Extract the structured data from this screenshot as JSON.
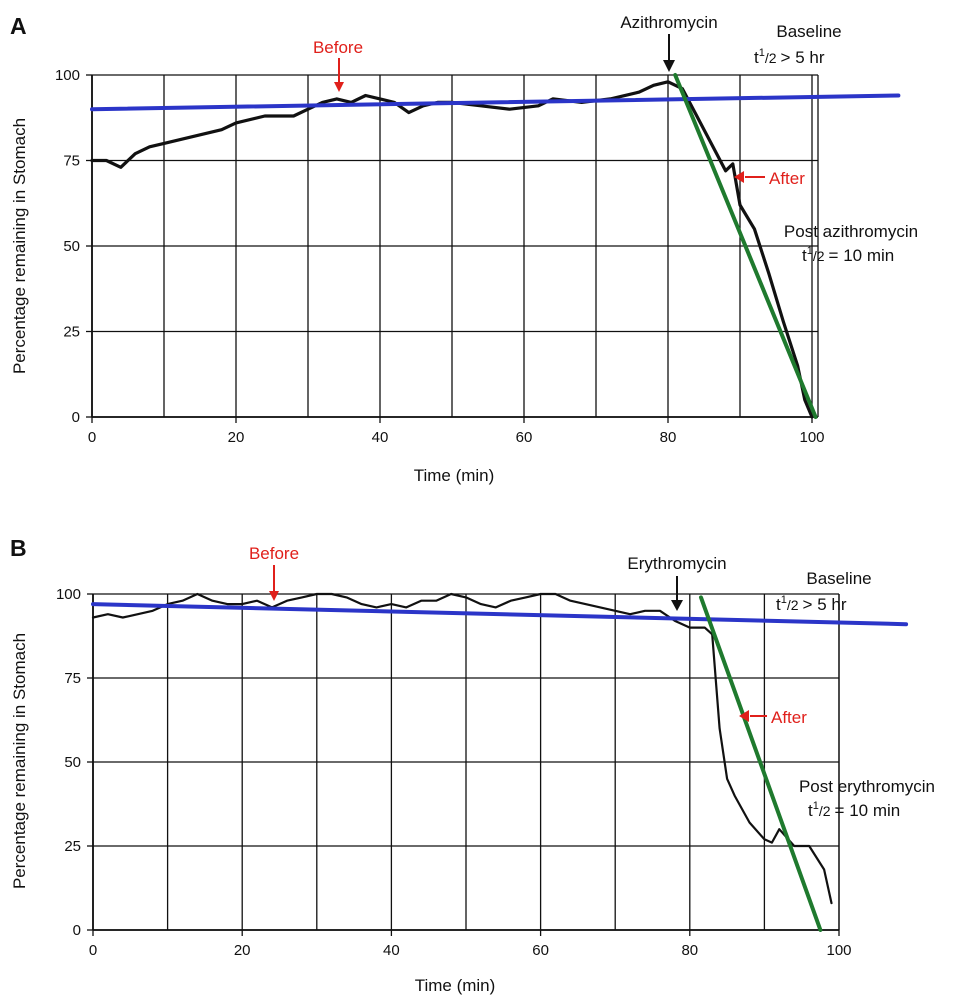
{
  "colors": {
    "baseline_line": "#2b35c8",
    "fit_line": "#1f7a2e",
    "trace": "#111111",
    "annotation_red": "#e0201b",
    "grid": "#111111"
  },
  "chart_data": [
    {
      "panel": "A",
      "type": "line",
      "xlabel": "Time (min)",
      "ylabel": "Percentage remaining in Stomach",
      "xlim": [
        0,
        100
      ],
      "ylim": [
        0,
        100
      ],
      "xticks": [
        "0",
        "20",
        "40",
        "60",
        "80",
        "100"
      ],
      "yticks": [
        "0",
        "25",
        "50",
        "75",
        "100"
      ],
      "grid": true,
      "series": [
        {
          "role": "trace",
          "color": "#111111",
          "x": [
            0,
            2,
            4,
            6,
            8,
            10,
            14,
            18,
            20,
            24,
            28,
            30,
            32,
            34,
            36,
            38,
            40,
            42,
            44,
            46,
            48,
            50,
            54,
            58,
            62,
            64,
            68,
            72,
            76,
            78,
            80,
            82,
            84,
            86,
            88,
            89,
            90,
            92,
            94,
            96,
            98,
            99,
            100
          ],
          "y": [
            75,
            75,
            73,
            77,
            79,
            80,
            82,
            84,
            86,
            88,
            88,
            90,
            92,
            93,
            92,
            94,
            93,
            92,
            89,
            91,
            92,
            92,
            91,
            90,
            91,
            93,
            92,
            93,
            95,
            97,
            98,
            96,
            88,
            80,
            72,
            74,
            62,
            55,
            42,
            28,
            15,
            5,
            0
          ]
        },
        {
          "role": "baseline-fit",
          "color": "#2b35c8",
          "x": [
            0,
            112
          ],
          "y": [
            90,
            94
          ]
        },
        {
          "role": "post-fit",
          "color": "#1f7a2e",
          "x": [
            81,
            100.5
          ],
          "y": [
            100,
            0
          ]
        }
      ],
      "annotations": {
        "drug": "Azithromycin",
        "before": "Before",
        "after": "After",
        "baseline": "Baseline",
        "baseline_halflife": "> 5 hr",
        "post": "Post azithromycin",
        "post_halflife": "= 10 min",
        "halflife_t": "t",
        "halflife_sup": "1",
        "halflife_den": "/2"
      }
    },
    {
      "panel": "B",
      "type": "line",
      "xlabel": "Time (min)",
      "ylabel": "Percentage remaining in Stomach",
      "xlim": [
        0,
        100
      ],
      "ylim": [
        0,
        100
      ],
      "xticks": [
        "0",
        "20",
        "40",
        "60",
        "80",
        "100"
      ],
      "yticks": [
        "0",
        "25",
        "50",
        "75",
        "100"
      ],
      "grid": true,
      "series": [
        {
          "role": "trace",
          "color": "#111111",
          "x": [
            0,
            2,
            4,
            6,
            8,
            10,
            12,
            14,
            16,
            18,
            20,
            22,
            24,
            26,
            28,
            30,
            32,
            34,
            36,
            38,
            40,
            42,
            44,
            46,
            48,
            50,
            52,
            54,
            56,
            58,
            60,
            62,
            64,
            66,
            68,
            70,
            72,
            74,
            76,
            78,
            80,
            82,
            83,
            84,
            85,
            86,
            88,
            90,
            91,
            92,
            94,
            96,
            98,
            99
          ],
          "y": [
            93,
            94,
            93,
            94,
            95,
            97,
            98,
            100,
            98,
            97,
            97,
            98,
            96,
            98,
            99,
            100,
            100,
            99,
            97,
            96,
            97,
            96,
            98,
            98,
            100,
            99,
            97,
            96,
            98,
            99,
            100,
            100,
            98,
            97,
            96,
            95,
            94,
            95,
            95,
            92,
            90,
            90,
            88,
            60,
            45,
            40,
            32,
            27,
            26,
            30,
            25,
            25,
            18,
            8
          ]
        },
        {
          "role": "baseline-fit",
          "color": "#2b35c8",
          "x": [
            0,
            109
          ],
          "y": [
            97,
            91
          ]
        },
        {
          "role": "post-fit",
          "color": "#1f7a2e",
          "x": [
            81.5,
            97.5
          ],
          "y": [
            99,
            0
          ]
        }
      ],
      "annotations": {
        "drug": "Erythromycin",
        "before": "Before",
        "after": "After",
        "baseline": "Baseline",
        "baseline_halflife": "> 5 hr",
        "post": "Post erythromycin",
        "post_halflife": "= 10 min",
        "halflife_t": "t",
        "halflife_sup": "1",
        "halflife_den": "/2"
      }
    }
  ]
}
